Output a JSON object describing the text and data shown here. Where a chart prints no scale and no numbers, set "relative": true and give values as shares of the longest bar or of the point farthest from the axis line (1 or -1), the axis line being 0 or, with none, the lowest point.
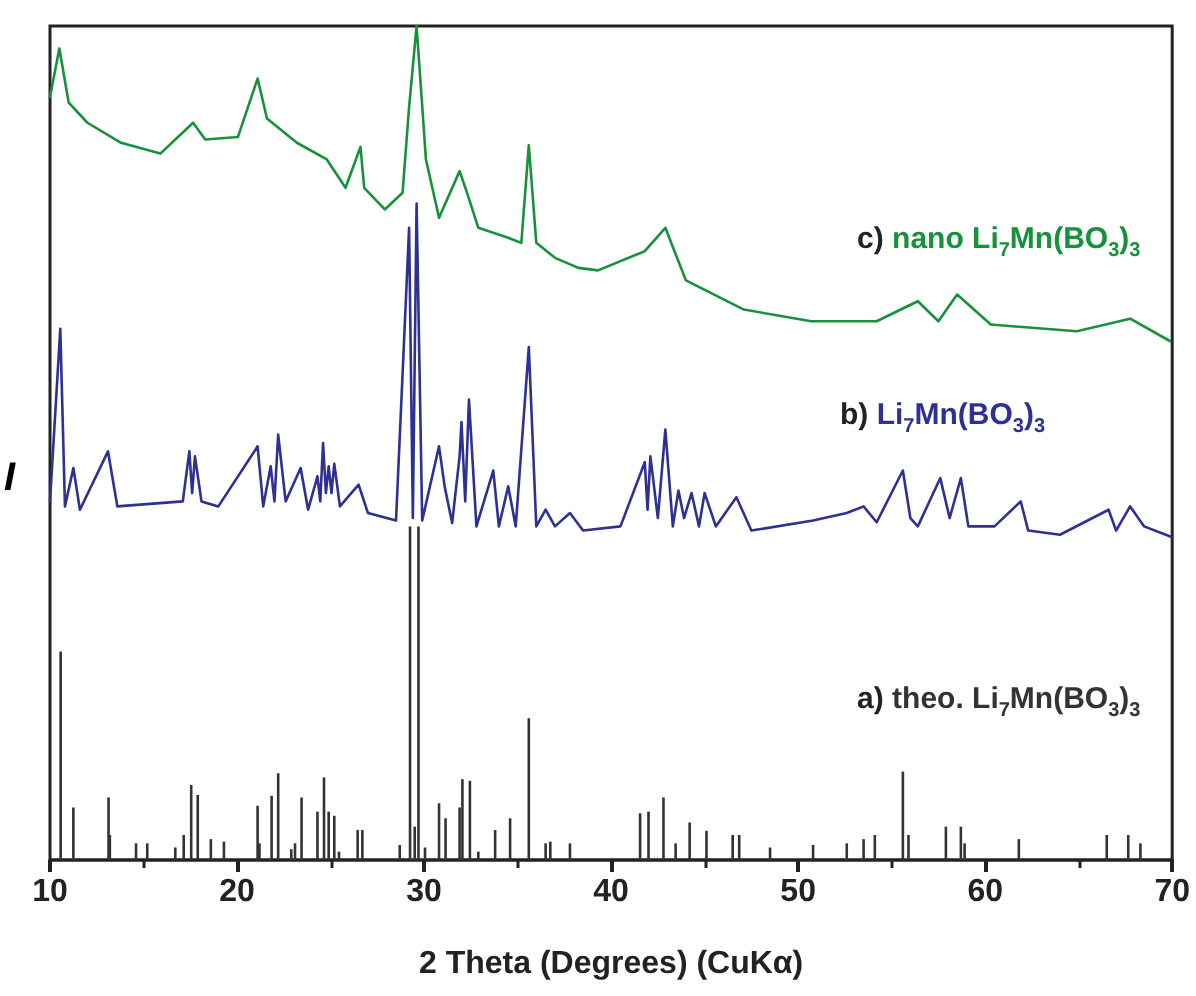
{
  "chart_data": {
    "type": "line",
    "relative": true,
    "xlabel": "2 Theta (Degrees) (CuKα)",
    "ylabel": "I",
    "xlim": [
      10,
      70
    ],
    "xticks": [
      10,
      20,
      30,
      40,
      50,
      60,
      70
    ],
    "legend": false,
    "grid": false,
    "marker": "none",
    "series": [
      {
        "name": "a) theo. Li$_{7}$Mn(BO$_{3}$)$_{3}$",
        "type": "bar",
        "color": "#333333",
        "x": [
          10.57,
          11.25,
          13.13,
          13.2,
          14.6,
          15.2,
          16.7,
          17.15,
          17.55,
          17.9,
          18.6,
          19.3,
          21.1,
          21.2,
          21.85,
          22.2,
          22.9,
          23.1,
          23.45,
          24.3,
          24.65,
          24.9,
          25.2,
          25.45,
          26.45,
          26.7,
          28.7,
          29.25,
          29.5,
          29.7,
          30.05,
          30.8,
          31.15,
          31.9,
          32.05,
          32.45,
          32.9,
          33.8,
          34.6,
          35.6,
          36.5,
          36.75,
          37.8,
          41.55,
          42.0,
          42.8,
          43.45,
          44.2,
          45.1,
          46.5,
          46.85,
          48.5,
          50.8,
          52.6,
          53.5,
          54.1,
          55.6,
          55.9,
          57.9,
          58.7,
          58.9,
          61.8,
          66.5,
          67.65,
          68.3
        ],
        "values": [
          0.25,
          0.063,
          0.075,
          0.03,
          0.02,
          0.02,
          0.015,
          0.03,
          0.09,
          0.078,
          0.025,
          0.022,
          0.065,
          0.02,
          0.077,
          0.104,
          0.013,
          0.02,
          0.075,
          0.058,
          0.099,
          0.058,
          0.053,
          0.01,
          0.036,
          0.036,
          0.018,
          0.4,
          0.04,
          0.4,
          0.015,
          0.068,
          0.05,
          0.063,
          0.097,
          0.095,
          0.01,
          0.036,
          0.05,
          0.17,
          0.02,
          0.022,
          0.02,
          0.056,
          0.058,
          0.075,
          0.02,
          0.045,
          0.035,
          0.03,
          0.03,
          0.015,
          0.018,
          0.02,
          0.025,
          0.03,
          0.106,
          0.03,
          0.04,
          0.04,
          0.02,
          0.025,
          0.03,
          0.03,
          0.02
        ]
      },
      {
        "name": "b) Li$_{7}$Mn(BO$_{3}$)$_{3}$",
        "color": "#2e3192",
        "x": [
          10.0,
          10.55,
          10.8,
          11.25,
          11.6,
          13.1,
          13.6,
          17.1,
          17.45,
          17.6,
          17.75,
          18.1,
          19.0,
          21.1,
          21.4,
          21.8,
          22.0,
          22.2,
          22.6,
          23.4,
          23.8,
          24.3,
          24.45,
          24.6,
          24.75,
          24.9,
          25.05,
          25.2,
          25.5,
          26.5,
          27.0,
          28.5,
          29.2,
          29.4,
          29.6,
          29.9,
          30.8,
          31.1,
          31.5,
          31.9,
          32.0,
          32.2,
          32.4,
          32.8,
          33.7,
          34.0,
          34.5,
          34.9,
          35.6,
          36.0,
          36.5,
          37.0,
          37.8,
          38.5,
          40.5,
          41.8,
          41.95,
          42.1,
          42.5,
          42.9,
          43.3,
          43.6,
          43.9,
          44.3,
          44.7,
          45.0,
          45.6,
          46.7,
          47.5,
          50.8,
          52.6,
          53.5,
          54.2,
          55.6,
          56.0,
          56.4,
          57.6,
          58.1,
          58.7,
          59.1,
          60.5,
          61.9,
          62.3,
          64.0,
          66.6,
          67.0,
          67.75,
          68.5,
          70.0
        ],
        "values": [
          0.43,
          0.637,
          0.424,
          0.47,
          0.42,
          0.49,
          0.424,
          0.43,
          0.49,
          0.44,
          0.484,
          0.43,
          0.424,
          0.496,
          0.424,
          0.472,
          0.43,
          0.51,
          0.43,
          0.47,
          0.42,
          0.46,
          0.43,
          0.5,
          0.44,
          0.472,
          0.44,
          0.475,
          0.424,
          0.45,
          0.416,
          0.407,
          0.758,
          0.41,
          0.787,
          0.407,
          0.496,
          0.448,
          0.404,
          0.484,
          0.525,
          0.43,
          0.552,
          0.4,
          0.467,
          0.4,
          0.448,
          0.4,
          0.615,
          0.4,
          0.42,
          0.4,
          0.416,
          0.395,
          0.4,
          0.477,
          0.42,
          0.484,
          0.41,
          0.516,
          0.4,
          0.443,
          0.41,
          0.44,
          0.4,
          0.44,
          0.4,
          0.435,
          0.395,
          0.407,
          0.416,
          0.424,
          0.405,
          0.467,
          0.41,
          0.4,
          0.458,
          0.41,
          0.458,
          0.4,
          0.4,
          0.43,
          0.395,
          0.39,
          0.42,
          0.395,
          0.424,
          0.4,
          0.387
        ]
      },
      {
        "name": "c) nano Li$_{7}$Mn(BO$_{3}$)$_{3}$",
        "color": "#17913b",
        "x": [
          10.0,
          10.5,
          11.0,
          12.0,
          13.8,
          15.9,
          17.65,
          18.3,
          20.05,
          21.1,
          21.6,
          23.2,
          24.8,
          25.8,
          26.6,
          26.8,
          27.9,
          28.85,
          29.2,
          29.6,
          30.1,
          30.8,
          31.9,
          32.3,
          32.9,
          34.5,
          35.2,
          35.6,
          36.0,
          37.0,
          38.25,
          39.3,
          41.8,
          42.9,
          44.0,
          47.1,
          50.7,
          54.2,
          56.4,
          57.5,
          58.5,
          60.3,
          64.9,
          67.75,
          69.9
        ],
        "values": [
          0.915,
          0.973,
          0.908,
          0.884,
          0.86,
          0.847,
          0.884,
          0.864,
          0.867,
          0.937,
          0.889,
          0.86,
          0.84,
          0.806,
          0.855,
          0.806,
          0.78,
          0.8,
          0.903,
          1.0,
          0.84,
          0.77,
          0.826,
          0.8,
          0.758,
          0.746,
          0.74,
          0.857,
          0.74,
          0.722,
          0.71,
          0.707,
          0.73,
          0.758,
          0.695,
          0.66,
          0.646,
          0.646,
          0.67,
          0.646,
          0.678,
          0.642,
          0.634,
          0.649,
          0.622
        ]
      }
    ]
  }
}
